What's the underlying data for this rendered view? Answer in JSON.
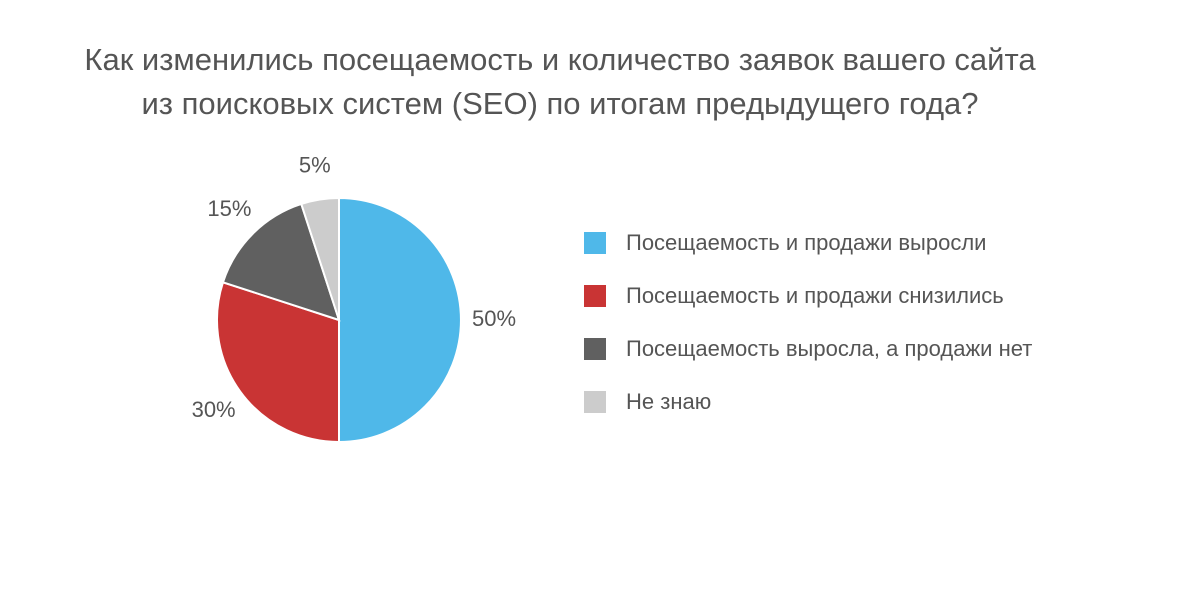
{
  "chart_data": {
    "type": "pie",
    "title": [
      "Как изменились посещаемость и количество заявок вашего сайта",
      "из поисковых систем (SEO) по итогам предыдущего года?"
    ],
    "slices": [
      {
        "label": "Посещаемость и продажи выросли",
        "value": 50,
        "value_label": "50%",
        "color": "#4fb8e9"
      },
      {
        "label": "Посещаемость и продажи снизились",
        "value": 30,
        "value_label": "30%",
        "color": "#c93434"
      },
      {
        "label": "Посещаемость выросла, а продажи нет",
        "value": 15,
        "value_label": "15%",
        "color": "#606060"
      },
      {
        "label": "Не знаю",
        "value": 5,
        "value_label": "5%",
        "color": "#cccccc"
      }
    ],
    "start": "12 o'clock",
    "direction": "clockwise",
    "legend_position": "right"
  }
}
